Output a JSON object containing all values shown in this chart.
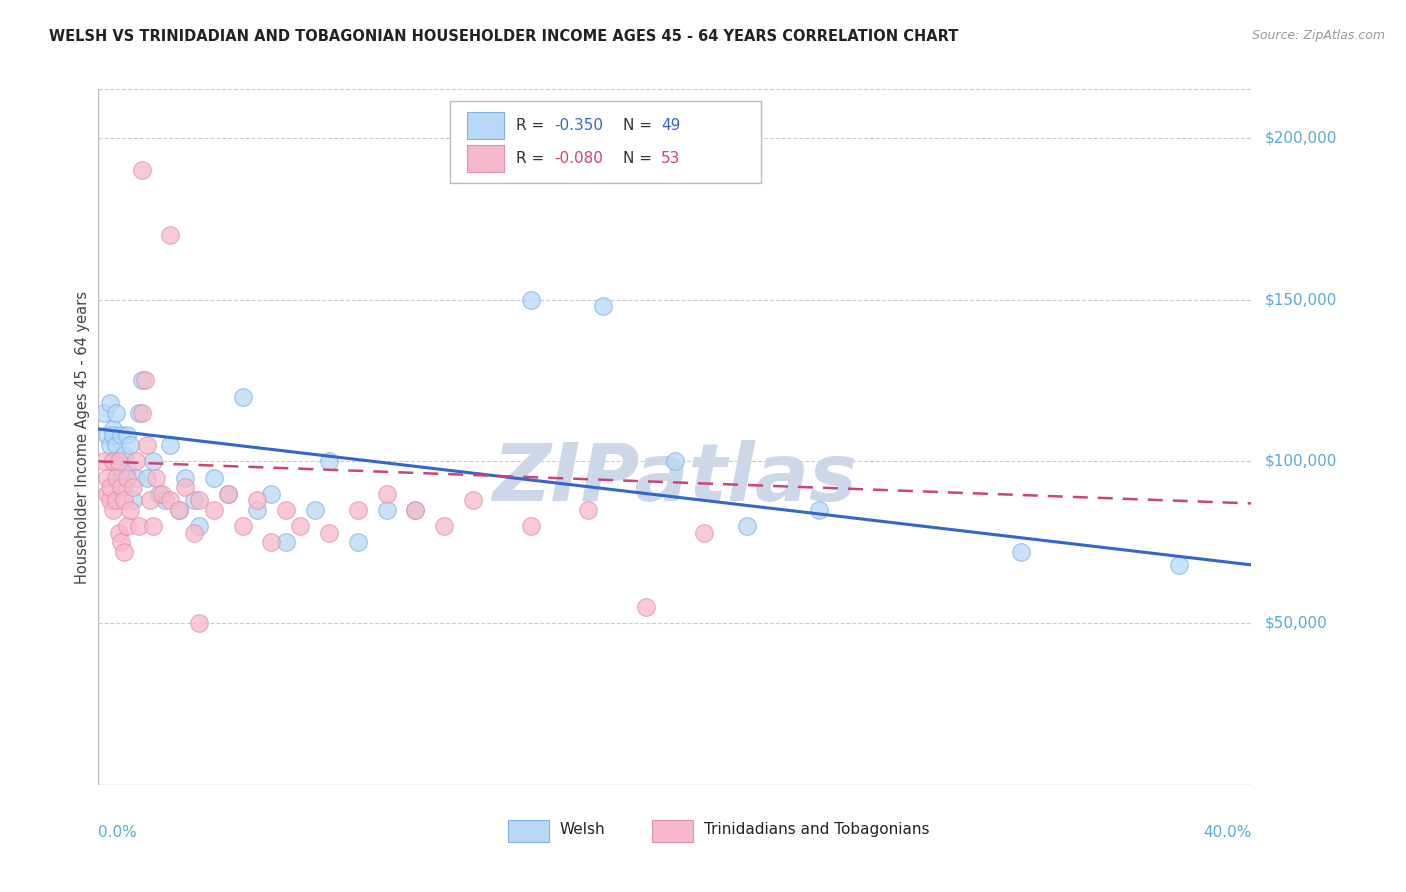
{
  "title": "WELSH VS TRINIDADIAN AND TOBAGONIAN HOUSEHOLDER INCOME AGES 45 - 64 YEARS CORRELATION CHART",
  "source": "Source: ZipAtlas.com",
  "ylabel": "Householder Income Ages 45 - 64 years",
  "ytick_labels": [
    "$50,000",
    "$100,000",
    "$150,000",
    "$200,000"
  ],
  "ytick_values": [
    50000,
    100000,
    150000,
    200000
  ],
  "ylim": [
    0,
    215000
  ],
  "xlim": [
    0.0,
    0.4
  ],
  "xlim_display_left": "0.0%",
  "xlim_display_right": "40.0%",
  "background_color": "#ffffff",
  "watermark_text": "ZIPatlas",
  "watermark_color": "#ccd8e8",
  "welsh_color": "#b8d8f8",
  "welsh_edge_color": "#80b0e0",
  "welsh_line_color": "#3366cc",
  "tnt_color": "#f8b8cc",
  "tnt_edge_color": "#e090a8",
  "tnt_line_color": "#cc4477",
  "R_welsh": "-0.350",
  "N_welsh": "49",
  "R_tnt": "-0.080",
  "N_tnt": "53",
  "welsh_x": [
    0.002,
    0.003,
    0.004,
    0.004,
    0.005,
    0.005,
    0.005,
    0.006,
    0.006,
    0.007,
    0.007,
    0.008,
    0.008,
    0.009,
    0.009,
    0.01,
    0.01,
    0.011,
    0.012,
    0.013,
    0.014,
    0.015,
    0.017,
    0.019,
    0.021,
    0.023,
    0.025,
    0.028,
    0.03,
    0.033,
    0.035,
    0.04,
    0.045,
    0.05,
    0.055,
    0.06,
    0.065,
    0.075,
    0.08,
    0.09,
    0.1,
    0.11,
    0.15,
    0.175,
    0.2,
    0.225,
    0.25,
    0.32,
    0.375
  ],
  "welsh_y": [
    115000,
    108000,
    118000,
    105000,
    110000,
    108000,
    100000,
    115000,
    105000,
    100000,
    98000,
    108000,
    95000,
    102000,
    92000,
    108000,
    98000,
    105000,
    88000,
    95000,
    115000,
    125000,
    95000,
    100000,
    90000,
    88000,
    105000,
    85000,
    95000,
    88000,
    80000,
    95000,
    90000,
    120000,
    85000,
    90000,
    75000,
    85000,
    100000,
    75000,
    85000,
    85000,
    150000,
    148000,
    100000,
    80000,
    85000,
    72000,
    68000
  ],
  "tnt_x": [
    0.002,
    0.003,
    0.003,
    0.004,
    0.004,
    0.005,
    0.005,
    0.006,
    0.006,
    0.007,
    0.007,
    0.008,
    0.008,
    0.009,
    0.009,
    0.01,
    0.01,
    0.011,
    0.012,
    0.013,
    0.014,
    0.015,
    0.016,
    0.017,
    0.018,
    0.019,
    0.02,
    0.022,
    0.025,
    0.028,
    0.03,
    0.033,
    0.035,
    0.04,
    0.045,
    0.05,
    0.055,
    0.06,
    0.065,
    0.07,
    0.08,
    0.09,
    0.1,
    0.11,
    0.12,
    0.13,
    0.15,
    0.17,
    0.19,
    0.21,
    0.015,
    0.025,
    0.035
  ],
  "tnt_y": [
    100000,
    95000,
    90000,
    88000,
    92000,
    85000,
    100000,
    95000,
    88000,
    100000,
    78000,
    92000,
    75000,
    88000,
    72000,
    95000,
    80000,
    85000,
    92000,
    100000,
    80000,
    115000,
    125000,
    105000,
    88000,
    80000,
    95000,
    90000,
    88000,
    85000,
    92000,
    78000,
    88000,
    85000,
    90000,
    80000,
    88000,
    75000,
    85000,
    80000,
    78000,
    85000,
    90000,
    85000,
    80000,
    88000,
    80000,
    85000,
    55000,
    78000,
    190000,
    170000,
    50000
  ]
}
